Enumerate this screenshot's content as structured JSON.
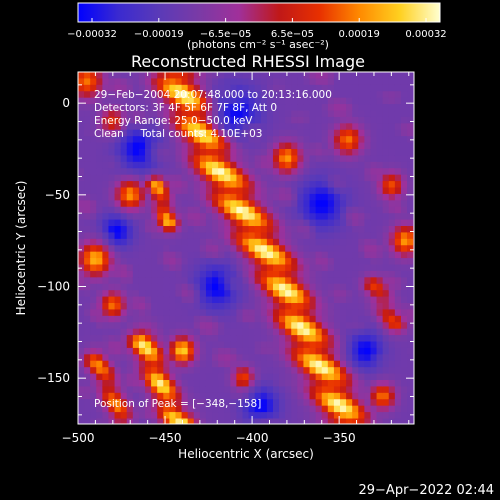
{
  "chart_data": {
    "type": "heatmap",
    "title": "Reconstructed RHESSI Image",
    "xlabel": "Heliocentric X (arcsec)",
    "ylabel": "Heliocentric Y (arcsec)",
    "xlim": [
      -500,
      -307
    ],
    "ylim": [
      -175,
      17
    ],
    "x_ticks": [
      "−500",
      "−450",
      "−400",
      "−350"
    ],
    "y_ticks": [
      "0",
      "−50",
      "−100",
      "−150"
    ],
    "colorbar": {
      "ticks": [
        "−0.00032",
        "−0.00019",
        "−6.5e−05",
        "6.5e−05",
        "0.00019",
        "0.00032"
      ],
      "range": [
        -0.00032,
        0.00032
      ],
      "units_label": "(photons cm⁻² s⁻¹ asec⁻²)",
      "stops": [
        "#0000ff",
        "#3a2ad0",
        "#5a3ab8",
        "#7a3aa6",
        "#a0309a",
        "#c01818",
        "#e83000",
        "#ff8a00",
        "#ffd020",
        "#ffffd0"
      ]
    },
    "info_lines": [
      "29−Feb−2004 20:07:48.000 to 20:13:16.000",
      "Detectors: 3F 4F 5F 6F 7F 8F, Att 0",
      "Energy Range: 25.0−50.0 keV",
      "Clean     Total counts: 4.10E+03"
    ],
    "peak_label": "Position of Peak = [−348,−158]",
    "peak": {
      "x": -348,
      "y": -158
    },
    "grid": false,
    "ridges": [
      {
        "x": [
          -445,
          -432,
          -420,
          -408,
          -396,
          -384,
          -375,
          -368,
          -360,
          -352,
          -345
        ],
        "y": [
          15,
          -10,
          -35,
          -55,
          -75,
          -95,
          -115,
          -130,
          -145,
          -160,
          -175
        ],
        "width": 18,
        "strength": 1.0
      },
      {
        "x": [
          -463,
          -456,
          -450,
          -445,
          -440
        ],
        "y": [
          -130,
          -145,
          -160,
          -170,
          -175
        ],
        "width": 12,
        "strength": 0.95
      },
      {
        "x": [
          -490,
          -482,
          -475
        ],
        "y": [
          -140,
          -155,
          -172
        ],
        "width": 10,
        "strength": 0.7
      },
      {
        "x": [
          -455,
          -448
        ],
        "y": [
          -45,
          -65
        ],
        "width": 9,
        "strength": 0.8
      },
      {
        "x": [
          -330,
          -318
        ],
        "y": [
          -100,
          -120
        ],
        "width": 10,
        "strength": 0.55
      }
    ],
    "blobs": [
      {
        "x": -495,
        "y": 12,
        "r": 9,
        "v": 0.45
      },
      {
        "x": -480,
        "y": -10,
        "r": 7,
        "v": 0.35
      },
      {
        "x": -470,
        "y": -50,
        "r": 8,
        "v": 0.5
      },
      {
        "x": -490,
        "y": -85,
        "r": 9,
        "v": 0.55
      },
      {
        "x": -480,
        "y": -110,
        "r": 7,
        "v": 0.45
      },
      {
        "x": -440,
        "y": -135,
        "r": 7,
        "v": 0.6
      },
      {
        "x": -380,
        "y": -30,
        "r": 8,
        "v": 0.5
      },
      {
        "x": -345,
        "y": -20,
        "r": 8,
        "v": 0.45
      },
      {
        "x": -320,
        "y": -45,
        "r": 7,
        "v": 0.4
      },
      {
        "x": -312,
        "y": -75,
        "r": 8,
        "v": 0.5
      },
      {
        "x": -405,
        "y": -150,
        "r": 6,
        "v": 0.4
      },
      {
        "x": -325,
        "y": -160,
        "r": 7,
        "v": 0.45
      }
    ],
    "holes": [
      {
        "x": -465,
        "y": -25,
        "r": 12
      },
      {
        "x": -410,
        "y": -5,
        "r": 14
      },
      {
        "x": -360,
        "y": -55,
        "r": 13
      },
      {
        "x": -420,
        "y": -100,
        "r": 12
      },
      {
        "x": -335,
        "y": -135,
        "r": 10
      },
      {
        "x": -395,
        "y": -165,
        "r": 10
      },
      {
        "x": -478,
        "y": -70,
        "r": 9
      }
    ]
  },
  "footer": {
    "timestamp": "29−Apr−2022 02:44"
  }
}
